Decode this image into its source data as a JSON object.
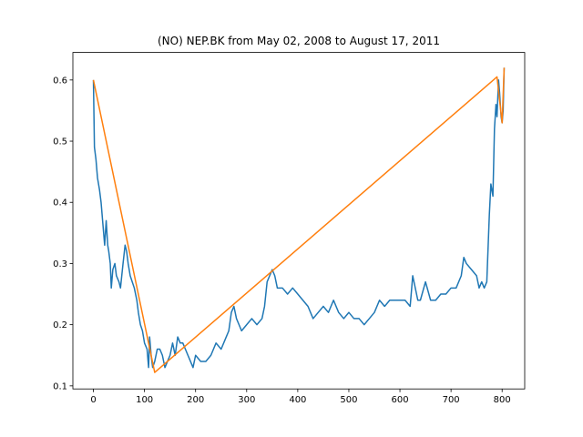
{
  "chart_data": {
    "type": "line",
    "title": "(NO) NEP.BK from May 02, 2008 to August 17, 2011",
    "xlim": [
      -40.2,
      844.2
    ],
    "xticks": [
      0,
      100,
      200,
      300,
      400,
      500,
      600,
      700,
      800
    ],
    "ylim": [
      0.095,
      0.645
    ],
    "yticks": [
      0.1,
      0.2,
      0.3,
      0.4,
      0.5,
      0.6
    ],
    "series": [
      {
        "color": "#1f77b4",
        "x": [
          0,
          2,
          5,
          8,
          12,
          15,
          18,
          20,
          22,
          25,
          28,
          30,
          33,
          35,
          38,
          42,
          45,
          50,
          53,
          58,
          62,
          65,
          68,
          72,
          76,
          80,
          85,
          88,
          92,
          96,
          100,
          105,
          108,
          110,
          113,
          116,
          120,
          125,
          130,
          135,
          140,
          145,
          150,
          155,
          160,
          165,
          170,
          175,
          180,
          185,
          190,
          195,
          200,
          210,
          220,
          230,
          240,
          250,
          260,
          265,
          270,
          275,
          280,
          285,
          290,
          300,
          310,
          320,
          330,
          335,
          340,
          345,
          350,
          355,
          360,
          370,
          380,
          390,
          400,
          410,
          420,
          430,
          440,
          450,
          460,
          470,
          480,
          490,
          500,
          510,
          520,
          530,
          540,
          550,
          560,
          570,
          580,
          590,
          600,
          610,
          620,
          625,
          630,
          635,
          640,
          650,
          660,
          670,
          680,
          690,
          700,
          710,
          720,
          725,
          730,
          740,
          750,
          755,
          760,
          765,
          770,
          775,
          778,
          782,
          785,
          788,
          790,
          793,
          795,
          798,
          800,
          802,
          804
        ],
        "values": [
          0.6,
          0.49,
          0.47,
          0.44,
          0.42,
          0.4,
          0.37,
          0.35,
          0.33,
          0.37,
          0.33,
          0.32,
          0.3,
          0.26,
          0.29,
          0.3,
          0.28,
          0.27,
          0.26,
          0.3,
          0.33,
          0.32,
          0.3,
          0.28,
          0.27,
          0.26,
          0.24,
          0.22,
          0.2,
          0.19,
          0.17,
          0.16,
          0.13,
          0.18,
          0.15,
          0.13,
          0.14,
          0.16,
          0.16,
          0.15,
          0.13,
          0.14,
          0.15,
          0.17,
          0.15,
          0.18,
          0.17,
          0.17,
          0.16,
          0.15,
          0.14,
          0.13,
          0.15,
          0.14,
          0.14,
          0.15,
          0.17,
          0.16,
          0.18,
          0.19,
          0.22,
          0.23,
          0.21,
          0.2,
          0.19,
          0.2,
          0.21,
          0.2,
          0.21,
          0.23,
          0.27,
          0.28,
          0.29,
          0.28,
          0.26,
          0.26,
          0.25,
          0.26,
          0.25,
          0.24,
          0.23,
          0.21,
          0.22,
          0.23,
          0.22,
          0.24,
          0.22,
          0.21,
          0.22,
          0.21,
          0.21,
          0.2,
          0.21,
          0.22,
          0.24,
          0.23,
          0.24,
          0.24,
          0.24,
          0.24,
          0.23,
          0.28,
          0.26,
          0.24,
          0.24,
          0.27,
          0.24,
          0.24,
          0.25,
          0.25,
          0.26,
          0.26,
          0.28,
          0.31,
          0.3,
          0.29,
          0.28,
          0.26,
          0.27,
          0.26,
          0.27,
          0.38,
          0.43,
          0.41,
          0.52,
          0.56,
          0.54,
          0.6,
          0.58,
          0.54,
          0.53,
          0.55,
          0.62
        ]
      },
      {
        "color": "#ff7f0e",
        "x": [
          0,
          120,
          790,
          800,
          804
        ],
        "values": [
          0.6,
          0.122,
          0.605,
          0.53,
          0.62
        ]
      }
    ]
  }
}
